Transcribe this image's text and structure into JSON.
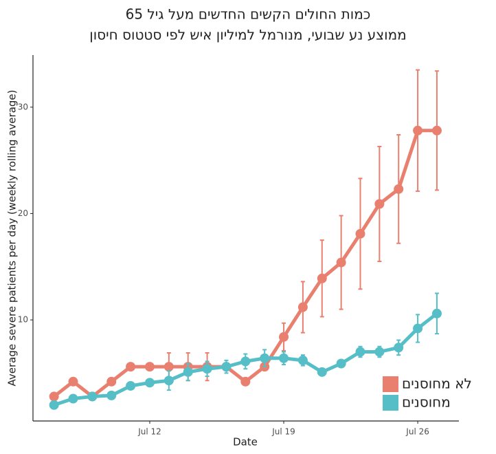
{
  "chart_data": {
    "type": "line",
    "title": "כמות החולים הקשים החדשים מעל גיל 65",
    "subtitle": "ממוצע נע שבועי, מנורמל למיליון איש לפי סטטוס חיסון",
    "x_label": "Date",
    "y_label": "Average severe patients per day (weekly rolling average)",
    "x": [
      7,
      8,
      9,
      10,
      11,
      12,
      13,
      14,
      15,
      16,
      17,
      18,
      19,
      20,
      21,
      22,
      23,
      24,
      25,
      26,
      27
    ],
    "xlim": [
      5.9,
      28.15
    ],
    "xticks": [
      {
        "value": 12,
        "label": "Jul 12"
      },
      {
        "value": 19,
        "label": "Jul 19"
      },
      {
        "value": 26,
        "label": "Jul 26"
      }
    ],
    "ylim": [
      0.5,
      34.9
    ],
    "yticks": [
      10,
      20,
      30
    ],
    "grid": false,
    "legend": "bottom-right",
    "series": [
      {
        "name": "לא מחוסנים",
        "color": "#e9806f",
        "values": [
          2.8,
          4.2,
          2.8,
          4.2,
          5.6,
          5.6,
          5.6,
          5.6,
          5.6,
          5.6,
          4.2,
          5.6,
          8.4,
          11.2,
          13.9,
          15.4,
          18.1,
          20.9,
          22.3,
          27.8,
          27.8
        ],
        "errors": [
          null,
          null,
          null,
          null,
          null,
          null,
          1.3,
          1.3,
          1.3,
          null,
          null,
          null,
          1.3,
          2.4,
          3.6,
          4.4,
          5.2,
          5.4,
          5.1,
          5.7,
          5.6
        ]
      },
      {
        "name": "מחוסנים",
        "color": "#55bec7",
        "values": [
          2.0,
          2.6,
          2.8,
          2.9,
          3.8,
          4.1,
          4.3,
          5.1,
          5.4,
          5.6,
          6.1,
          6.4,
          6.4,
          6.2,
          5.1,
          5.9,
          7.0,
          7.0,
          7.4,
          9.2,
          10.6
        ],
        "errors": [
          null,
          null,
          null,
          null,
          null,
          null,
          0.9,
          0.8,
          0.7,
          0.6,
          0.7,
          0.8,
          0.6,
          0.5,
          null,
          null,
          0.5,
          0.5,
          0.7,
          1.3,
          1.9
        ]
      }
    ]
  }
}
